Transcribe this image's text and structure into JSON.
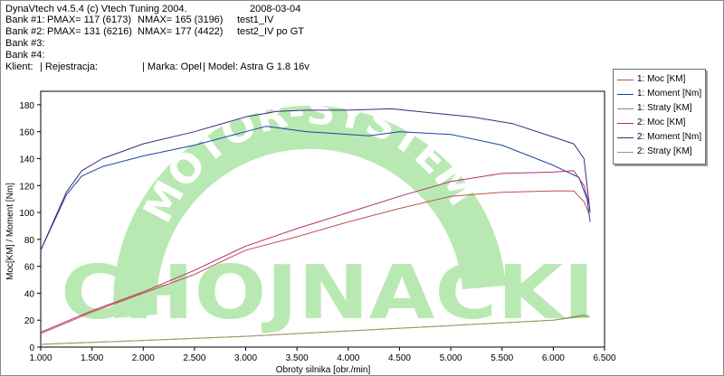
{
  "header": {
    "app": "DynaVtech v4.5.4 (c) Vtech Tuning 2004.",
    "date": "2008-03-04",
    "bank1": {
      "label": "Bank #1:",
      "pmax": "PMAX= 117 (6173)",
      "nmax": "NMAX= 165 (3196)",
      "name": "test1_IV"
    },
    "bank2": {
      "label": "Bank #2:",
      "pmax": "PMAX= 131 (6216)",
      "nmax": "NMAX= 177 (4422)",
      "name": "test2_IV po GT"
    },
    "bank3": {
      "label": "Bank #3:"
    },
    "bank4": {
      "label": "Bank #4:"
    },
    "client": {
      "klient": "Klient:",
      "rejestracja": "| Rejestracja:",
      "marka": "| Marka: Opel",
      "model": "| Model: Astra G 1.8 16v"
    }
  },
  "watermark": {
    "arc_text": "MOTOR-SYSTEM",
    "big_text": "CHOJNACKI",
    "color": "#b9e9b3"
  },
  "chart_data": {
    "type": "line",
    "xlabel": "Obroty silnika [obr./min]",
    "ylabel": "Moc[KM] / Moment [Nm]",
    "xlim": [
      1000,
      6500
    ],
    "ylim": [
      0,
      190
    ],
    "xticks": [
      1000,
      1500,
      2000,
      2500,
      3000,
      3500,
      4000,
      4500,
      5000,
      5500,
      6000,
      6500
    ],
    "xtick_labels": [
      "1.000",
      "1.500",
      "2.000",
      "2.500",
      "3.000",
      "3.500",
      "4.000",
      "4.500",
      "5.000",
      "5.500",
      "6.000",
      "6.500"
    ],
    "yticks": [
      0,
      20,
      40,
      60,
      80,
      100,
      120,
      140,
      160,
      180
    ],
    "grid": false,
    "legend_position": "top-right",
    "series": [
      {
        "name": "1: Moc [KM]",
        "color": "#c0504d",
        "x": [
          1000,
          1500,
          2000,
          2500,
          3000,
          3500,
          4000,
          4500,
          5000,
          5500,
          6000,
          6200,
          6300,
          6350
        ],
        "y": [
          10,
          26,
          40,
          54,
          72,
          82,
          93,
          103,
          112,
          115,
          116,
          116,
          108,
          99
        ]
      },
      {
        "name": "1: Moment [Nm]",
        "color": "#1f3fa8",
        "x": [
          1000,
          1250,
          1400,
          1600,
          2000,
          2500,
          3000,
          3200,
          3600,
          4000,
          4200,
          4500,
          5000,
          5500,
          6000,
          6250,
          6330,
          6360
        ],
        "y": [
          72,
          113,
          127,
          134,
          142,
          150,
          160,
          164,
          160,
          158,
          157,
          160,
          158,
          150,
          135,
          126,
          110,
          93
        ]
      },
      {
        "name": "1: Straty [KM]",
        "color": "#8a8f5a",
        "x": [
          1000,
          2000,
          3000,
          4000,
          5000,
          6000,
          6300,
          6350
        ],
        "y": [
          2,
          5,
          8,
          12,
          16,
          20,
          23,
          22
        ]
      },
      {
        "name": "2: Moc [KM]",
        "color": "#b0306a",
        "x": [
          1000,
          1500,
          2000,
          2500,
          3000,
          3500,
          4000,
          4500,
          5000,
          5500,
          6000,
          6200,
          6300,
          6350
        ],
        "y": [
          11,
          27,
          41,
          57,
          75,
          88,
          100,
          112,
          123,
          129,
          130,
          131,
          120,
          106
        ]
      },
      {
        "name": "2: Moment [Nm]",
        "color": "#3c2a78",
        "x": [
          1000,
          1250,
          1400,
          1600,
          2000,
          2500,
          3000,
          3300,
          3600,
          4000,
          4422,
          4800,
          5200,
          5600,
          6000,
          6200,
          6300,
          6360
        ],
        "y": [
          72,
          115,
          131,
          140,
          151,
          160,
          171,
          175,
          176,
          176,
          177,
          174,
          171,
          166,
          156,
          151,
          140,
          100
        ]
      },
      {
        "name": "2: Straty [KM]",
        "color": "#9b9b6a",
        "x": [
          1000,
          2000,
          3000,
          4000,
          5000,
          6000,
          6300,
          6350
        ],
        "y": [
          2,
          5,
          8,
          12,
          16,
          20,
          24,
          23
        ]
      }
    ]
  }
}
